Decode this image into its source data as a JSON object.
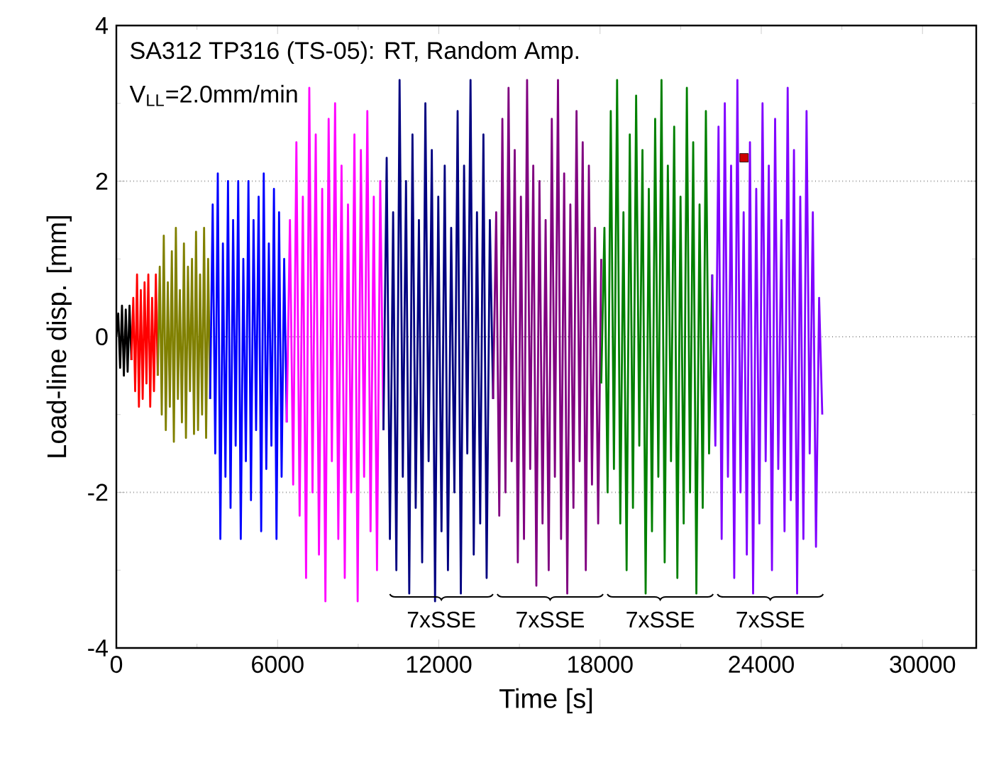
{
  "chart_data": {
    "type": "line",
    "title": "SA312 TP316 (TS-05): RT, Random Amp.",
    "subtitle": "V$_{LL}$=2.0mm/min",
    "xlabel": "Time [s]",
    "ylabel": "Load-line disp. [mm]",
    "xlim": [
      0,
      32000
    ],
    "ylim": [
      -4,
      4
    ],
    "xticks": [
      0,
      6000,
      12000,
      18000,
      24000,
      30000
    ],
    "yticks": [
      -4,
      -2,
      0,
      2,
      4
    ],
    "grid": "y",
    "series": [
      {
        "color": "#000000",
        "x": [
          0,
          70,
          140,
          210,
          280,
          350,
          420,
          490,
          560
        ],
        "values": [
          0,
          0.3,
          -0.4,
          0.4,
          -0.5,
          0.35,
          -0.45,
          0.4,
          -0.3
        ]
      },
      {
        "color": "#ff0000",
        "x": [
          560,
          630,
          700,
          770,
          840,
          910,
          980,
          1050,
          1120,
          1190,
          1260,
          1330,
          1400,
          1470,
          1540
        ],
        "values": [
          -0.3,
          0.5,
          -0.7,
          0.8,
          -0.9,
          0.6,
          -0.8,
          0.7,
          -0.6,
          0.8,
          -0.9,
          0.5,
          -0.7,
          0.8,
          -0.5
        ]
      },
      {
        "color": "#808000",
        "x": [
          1540,
          1615,
          1690,
          1765,
          1840,
          1915,
          1990,
          2065,
          2140,
          2215,
          2290,
          2365,
          2440,
          2515,
          2590,
          2665,
          2740,
          2815,
          2890,
          2965,
          3040,
          3115,
          3190,
          3265,
          3340,
          3415,
          3490
        ],
        "values": [
          -0.5,
          0.9,
          -1.0,
          1.3,
          -1.2,
          0.7,
          -0.9,
          1.1,
          -1.35,
          1.4,
          -0.8,
          0.6,
          -1.1,
          1.2,
          -1.3,
          0.9,
          -0.7,
          1.0,
          -1.25,
          1.35,
          -1.2,
          0.8,
          -1.0,
          1.4,
          -1.3,
          1.0,
          -0.8
        ]
      },
      {
        "color": "#0000ff",
        "x": [
          3490,
          3585,
          3680,
          3775,
          3870,
          3965,
          4060,
          4155,
          4250,
          4345,
          4440,
          4535,
          4630,
          4725,
          4820,
          4915,
          5010,
          5105,
          5200,
          5295,
          5390,
          5485,
          5580,
          5675,
          5770,
          5865,
          5960,
          6055,
          6150,
          6245,
          6340
        ],
        "values": [
          -0.8,
          1.7,
          -1.5,
          2.1,
          -2.6,
          1.2,
          -1.8,
          2.0,
          -2.2,
          1.5,
          -1.4,
          2.0,
          -2.6,
          1.0,
          -1.6,
          2.0,
          -2.1,
          1.5,
          -1.2,
          1.8,
          -2.5,
          2.1,
          -1.7,
          1.2,
          -1.4,
          1.9,
          -2.6,
          1.6,
          -1.8,
          1.0,
          -1.1
        ]
      },
      {
        "color": "#ff00ff",
        "x": [
          6340,
          6460,
          6580,
          6700,
          6820,
          6940,
          7060,
          7180,
          7300,
          7420,
          7540,
          7660,
          7780,
          7900,
          8020,
          8140,
          8260,
          8380,
          8500,
          8620,
          8740,
          8860,
          8980,
          9100,
          9220,
          9340,
          9460,
          9580,
          9700,
          9820,
          9940
        ],
        "values": [
          -1.1,
          1.5,
          -1.9,
          2.5,
          -2.3,
          1.8,
          -3.1,
          3.2,
          -2.0,
          2.6,
          -2.8,
          1.9,
          -3.4,
          2.8,
          -1.6,
          3.0,
          -2.6,
          2.2,
          -3.1,
          1.7,
          -2.0,
          2.6,
          -3.4,
          2.4,
          -1.8,
          2.9,
          -2.5,
          1.8,
          -3.0,
          2.0,
          -1.2
        ]
      },
      {
        "color": "#000080",
        "x": [
          9940,
          10060,
          10180,
          10300,
          10420,
          10540,
          10660,
          10780,
          10900,
          11020,
          11140,
          11260,
          11380,
          11500,
          11620,
          11740,
          11860,
          11980,
          12100,
          12220,
          12340,
          12460,
          12580,
          12700,
          12820,
          12940,
          13060,
          13180,
          13300,
          13420,
          13540,
          13660,
          13780,
          13900,
          14020
        ],
        "values": [
          -1.2,
          2.3,
          -2.6,
          1.6,
          -3.0,
          3.3,
          -1.8,
          2.0,
          -3.3,
          2.6,
          -2.2,
          1.5,
          -2.9,
          3.0,
          -1.6,
          2.4,
          -3.4,
          1.8,
          -2.5,
          2.2,
          -3.0,
          1.4,
          -2.0,
          2.9,
          -3.3,
          2.2,
          -1.5,
          3.3,
          -2.8,
          1.6,
          -2.4,
          2.6,
          -3.1,
          1.5,
          -0.8
        ]
      },
      {
        "color": "#800080",
        "x": [
          14020,
          14135,
          14250,
          14365,
          14480,
          14595,
          14710,
          14825,
          14940,
          15055,
          15170,
          15285,
          15400,
          15515,
          15630,
          15745,
          15860,
          15975,
          16090,
          16205,
          16320,
          16435,
          16550,
          16665,
          16780,
          16895,
          17010,
          17125,
          17240,
          17355,
          17470,
          17585,
          17700,
          17815,
          17930,
          18045
        ],
        "values": [
          -0.8,
          1.6,
          -2.3,
          2.8,
          -2.0,
          3.2,
          -1.6,
          2.4,
          -2.9,
          1.8,
          -2.6,
          3.3,
          -1.7,
          2.2,
          -3.2,
          2.0,
          -2.4,
          1.5,
          -3.0,
          2.8,
          -1.8,
          3.3,
          -2.6,
          2.1,
          -3.3,
          1.7,
          -2.2,
          2.9,
          -1.6,
          2.5,
          -3.0,
          2.2,
          -1.9,
          1.4,
          -2.4,
          1.0
        ]
      },
      {
        "color": "#008000",
        "x": [
          18045,
          18163,
          18281,
          18399,
          18517,
          18635,
          18753,
          18871,
          18989,
          19107,
          19225,
          19343,
          19461,
          19579,
          19697,
          19815,
          19933,
          20051,
          20169,
          20287,
          20405,
          20523,
          20641,
          20759,
          20877,
          20995,
          21113,
          21231,
          21349,
          21467,
          21585,
          21703,
          21821,
          21939,
          22057,
          22175
        ],
        "values": [
          -0.6,
          1.4,
          -2.0,
          2.9,
          -1.7,
          3.3,
          -2.4,
          1.6,
          -3.0,
          2.6,
          -2.2,
          3.1,
          -1.4,
          2.4,
          -3.3,
          1.9,
          -2.5,
          2.8,
          -1.8,
          3.3,
          -2.9,
          2.2,
          -1.6,
          2.7,
          -3.1,
          1.8,
          -2.4,
          3.2,
          -2.0,
          2.5,
          -3.3,
          1.7,
          -2.2,
          2.9,
          -1.5,
          0.8
        ]
      },
      {
        "color": "#8000ff",
        "x": [
          22175,
          22292,
          22409,
          22526,
          22643,
          22760,
          22877,
          22994,
          23111,
          23228,
          23345,
          23462,
          23579,
          23696,
          23813,
          23930,
          24047,
          24164,
          24281,
          24398,
          24515,
          24632,
          24749,
          24866,
          24983,
          25100,
          25217,
          25334,
          25451,
          25568,
          25685,
          25802,
          25919,
          26036,
          26153,
          26270
        ],
        "values": [
          0.8,
          -1.4,
          2.7,
          -2.6,
          3.0,
          -1.8,
          2.2,
          -3.1,
          3.3,
          -2.0,
          1.6,
          -2.8,
          2.5,
          -3.3,
          1.9,
          -2.4,
          3.0,
          -1.6,
          2.2,
          -3.0,
          2.8,
          -1.7,
          1.5,
          -2.5,
          3.2,
          -2.1,
          2.4,
          -3.3,
          1.8,
          -2.6,
          2.9,
          -1.5,
          1.6,
          -2.7,
          0.5,
          -1.0
        ]
      },
      {
        "type": "scatter",
        "marker": "square",
        "color": "#cc0000",
        "x": [
          23360
        ],
        "values": [
          2.3
        ]
      }
    ],
    "annotations": [
      "7xSSE",
      "7xSSE",
      "7xSSE",
      "7xSSE"
    ]
  }
}
